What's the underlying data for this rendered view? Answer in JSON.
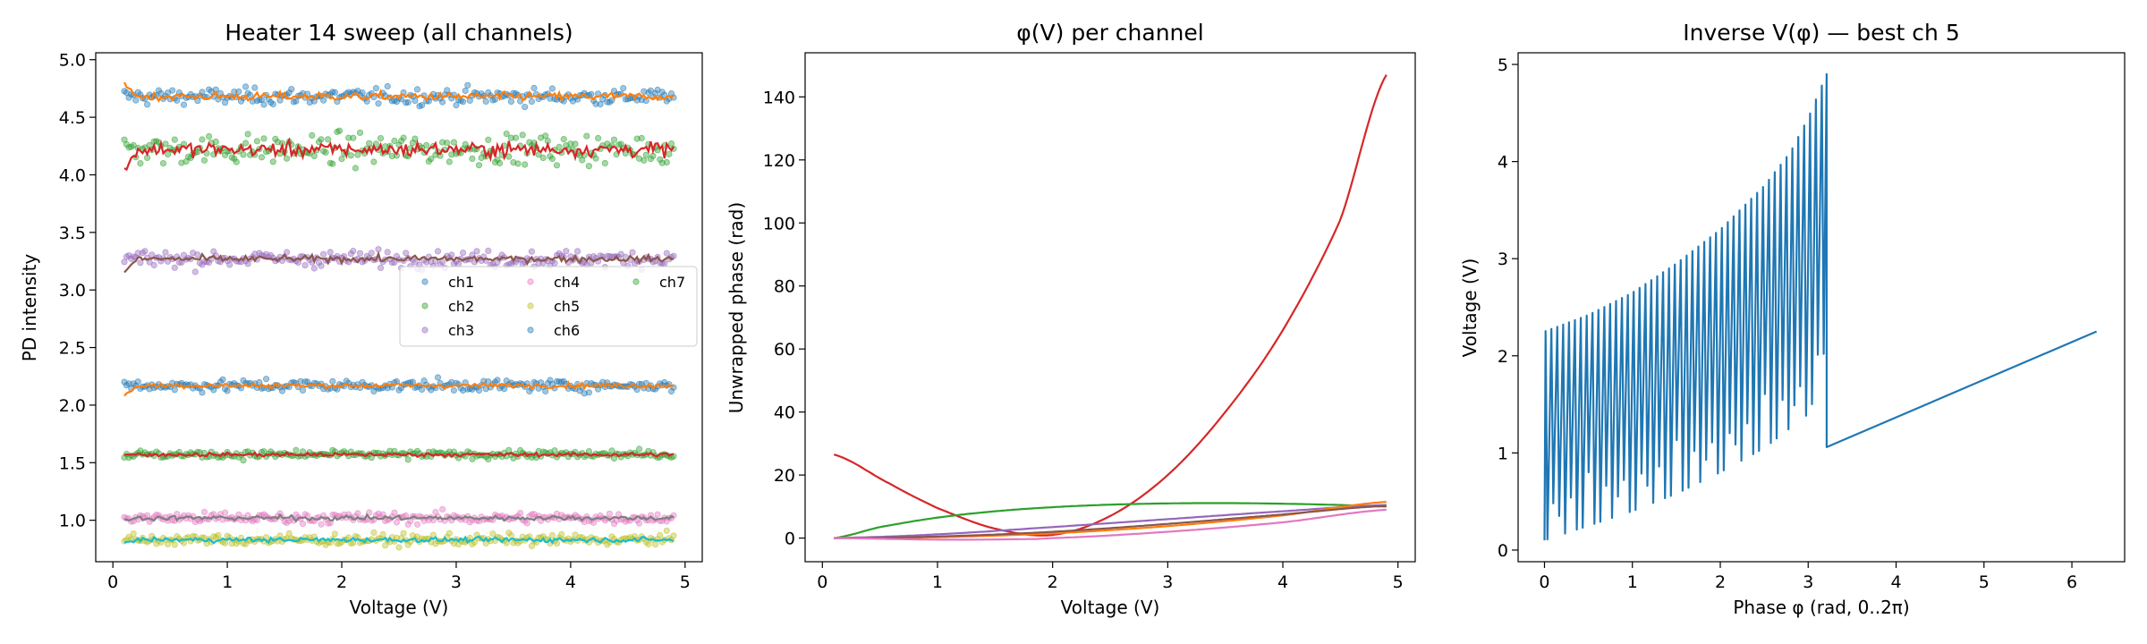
{
  "figure": {
    "panels": [
      {
        "title": "Heater 14 sweep (all channels)",
        "xlabel": "Voltage (V)",
        "ylabel": "PD intensity"
      },
      {
        "title": "φ(V) per channel",
        "xlabel": "Voltage (V)",
        "ylabel": "Unwrapped phase (rad)"
      },
      {
        "title": "Inverse V(φ) — best ch 5",
        "xlabel": "Phase φ (rad, 0..2π)",
        "ylabel": "Voltage (V)"
      }
    ]
  },
  "chart_data": [
    {
      "type": "scatter",
      "title": "Heater 14 sweep (all channels)",
      "xlabel": "Voltage (V)",
      "ylabel": "PD intensity",
      "xlim": [
        -0.15,
        5.15
      ],
      "ylim": [
        0.64,
        5.06
      ],
      "xticks": [
        0,
        1,
        2,
        3,
        4,
        5
      ],
      "yticks": [
        1.0,
        1.5,
        2.0,
        2.5,
        3.0,
        3.5,
        4.0,
        4.5,
        5.0
      ],
      "x_range": [
        0.1,
        4.9
      ],
      "legend": {
        "placement": "center-right",
        "columns": 3
      },
      "series": [
        {
          "name": "ch1",
          "color": "#1f77b4",
          "level": 4.68,
          "noise": 0.05,
          "line_color": "#ff7f0e",
          "line_noise": 0.025,
          "start": 4.78
        },
        {
          "name": "ch2",
          "color": "#2ca02c",
          "level": 4.22,
          "noise": 0.09,
          "line_color": "#d62728",
          "line_noise": 0.045,
          "start": 4.04
        },
        {
          "name": "ch3",
          "color": "#9467bd",
          "level": 3.27,
          "noise": 0.05,
          "line_color": "#8c564b",
          "line_noise": 0.02,
          "start": 3.16
        },
        {
          "name": "ch4",
          "color": "#e377c2",
          "level": 1.02,
          "noise": 0.035,
          "line_color": "#7f7f7f",
          "line_noise": 0.015,
          "start": 1.0
        },
        {
          "name": "ch5",
          "color": "#bcbd22",
          "level": 0.83,
          "noise": 0.035,
          "line_color": "#17becf",
          "line_noise": 0.015,
          "start": 0.81
        },
        {
          "name": "ch6",
          "color": "#1f77b4",
          "level": 2.17,
          "noise": 0.035,
          "line_color": "#ff7f0e",
          "line_noise": 0.015,
          "start": 2.08
        },
        {
          "name": "ch7",
          "color": "#2ca02c",
          "level": 1.57,
          "noise": 0.025,
          "line_color": "#d62728",
          "line_noise": 0.012,
          "start": 1.57
        }
      ]
    },
    {
      "type": "line",
      "title": "φ(V) per channel",
      "xlabel": "Voltage (V)",
      "ylabel": "Unwrapped phase (rad)",
      "xlim": [
        -0.15,
        5.15
      ],
      "ylim": [
        -7.5,
        154
      ],
      "xticks": [
        0,
        1,
        2,
        3,
        4,
        5
      ],
      "yticks": [
        0,
        20,
        40,
        60,
        80,
        100,
        120,
        140
      ],
      "series": [
        {
          "color": "#d62728",
          "points": [
            [
              0.1,
              26.5
            ],
            [
              0.6,
              17.0
            ],
            [
              1.0,
              9.5
            ],
            [
              1.5,
              3.0
            ],
            [
              2.0,
              1.0
            ],
            [
              2.5,
              7.0
            ],
            [
              3.0,
              20.0
            ],
            [
              3.5,
              40.0
            ],
            [
              4.0,
              66.0
            ],
            [
              4.5,
              101.0
            ],
            [
              4.9,
              147.0
            ]
          ]
        },
        {
          "color": "#2ca02c",
          "points": [
            [
              0.1,
              0.0
            ],
            [
              0.5,
              3.5
            ],
            [
              1.0,
              6.5
            ],
            [
              1.5,
              8.5
            ],
            [
              2.0,
              9.8
            ],
            [
              2.5,
              10.6
            ],
            [
              3.0,
              11.0
            ],
            [
              3.5,
              11.1
            ],
            [
              4.0,
              10.9
            ],
            [
              4.5,
              10.5
            ],
            [
              4.9,
              10.0
            ]
          ]
        },
        {
          "color": "#9467bd",
          "points": [
            [
              0.1,
              0.0
            ],
            [
              1.0,
              1.2
            ],
            [
              2.0,
              3.5
            ],
            [
              3.0,
              6.0
            ],
            [
              4.0,
              8.5
            ],
            [
              4.9,
              10.5
            ]
          ]
        },
        {
          "color": "#ff7f0e",
          "points": [
            [
              0.1,
              0.0
            ],
            [
              1.0,
              0.3
            ],
            [
              2.0,
              1.5
            ],
            [
              3.0,
              3.8
            ],
            [
              4.0,
              7.2
            ],
            [
              4.9,
              11.5
            ]
          ]
        },
        {
          "color": "#8c564b",
          "points": [
            [
              0.1,
              0.0
            ],
            [
              1.0,
              0.5
            ],
            [
              2.0,
              2.0
            ],
            [
              3.0,
              4.5
            ],
            [
              4.0,
              7.5
            ],
            [
              4.9,
              10.2
            ]
          ]
        },
        {
          "color": "#e377c2",
          "points": [
            [
              0.1,
              0.0
            ],
            [
              1.0,
              -0.5
            ],
            [
              1.6,
              -0.4
            ],
            [
              2.0,
              0.0
            ],
            [
              3.0,
              2.0
            ],
            [
              4.0,
              5.0
            ],
            [
              4.9,
              9.0
            ]
          ]
        }
      ]
    },
    {
      "type": "line",
      "title": "Inverse V(φ) — best ch 5",
      "xlabel": "Phase φ (rad, 0..2π)",
      "ylabel": "Voltage (V)",
      "xlim": [
        -0.3,
        6.6
      ],
      "ylim": [
        -0.12,
        5.12
      ],
      "xticks": [
        0,
        1,
        2,
        3,
        4,
        5,
        6
      ],
      "yticks": [
        0,
        1,
        2,
        3,
        4,
        5
      ],
      "color": "#1f77b4",
      "series": [
        {
          "name": "oscillating_segment",
          "phase_range": [
            0.0,
            3.21
          ],
          "teeth": 48,
          "upper_envelope": [
            [
              0.0,
              2.25
            ],
            [
              0.5,
              2.42
            ],
            [
              1.0,
              2.65
            ],
            [
              1.5,
              2.95
            ],
            [
              2.0,
              3.3
            ],
            [
              2.5,
              3.75
            ],
            [
              2.8,
              4.1
            ],
            [
              3.0,
              4.45
            ],
            [
              3.21,
              4.9
            ]
          ],
          "lower_envelope": [
            [
              0.0,
              0.1
            ],
            [
              0.5,
              0.25
            ],
            [
              1.0,
              0.4
            ],
            [
              1.5,
              0.58
            ],
            [
              2.0,
              0.8
            ],
            [
              2.5,
              1.05
            ],
            [
              3.0,
              1.4
            ],
            [
              3.21,
              1.9
            ]
          ]
        },
        {
          "name": "linear_segment",
          "points": [
            [
              3.21,
              1.06
            ],
            [
              6.28,
              2.25
            ]
          ]
        }
      ]
    }
  ]
}
